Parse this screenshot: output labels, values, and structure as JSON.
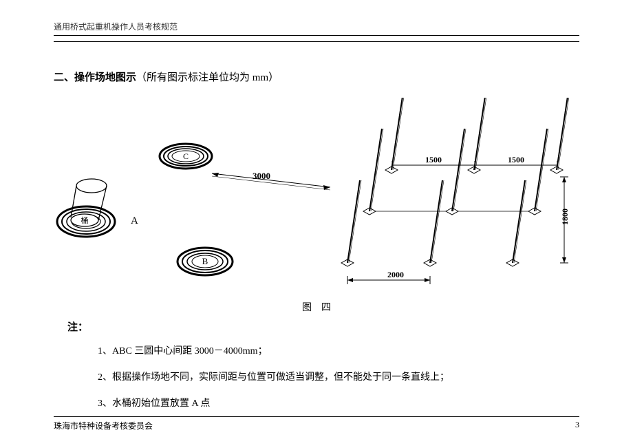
{
  "header": "通用桥式起重机操作人员考核规范",
  "section": {
    "number": "二、",
    "title": "操作场地图示",
    "paren": "（所有图示标注单位均为 mm）"
  },
  "figure": {
    "caption": "图　四",
    "left_diagram": {
      "labels": {
        "A": "A",
        "B": "B",
        "C": "C",
        "bucket": "桶"
      },
      "dim_3000": "3000"
    },
    "right_diagram": {
      "dims": {
        "d1500a": "1500",
        "d1500b": "1500",
        "d2000": "2000",
        "d1800": "1800"
      },
      "grid_cols": [
        0,
        120,
        240
      ],
      "grid_rows": [
        0,
        75,
        135
      ],
      "pole_len": 120,
      "colors": {
        "line": "#000000",
        "fill_light": "#ffffff"
      }
    }
  },
  "notes": {
    "title": "注：",
    "items": [
      "1、ABC 三圆中心间距 3000－4000mm；",
      "2、根据操作场地不同，实际间距与位置可做适当调整，但不能处于同一条直线上；",
      "3、水桶初始位置放置 A 点"
    ]
  },
  "footer": {
    "org": "珠海市特种设备考核委员会",
    "page": "3"
  }
}
